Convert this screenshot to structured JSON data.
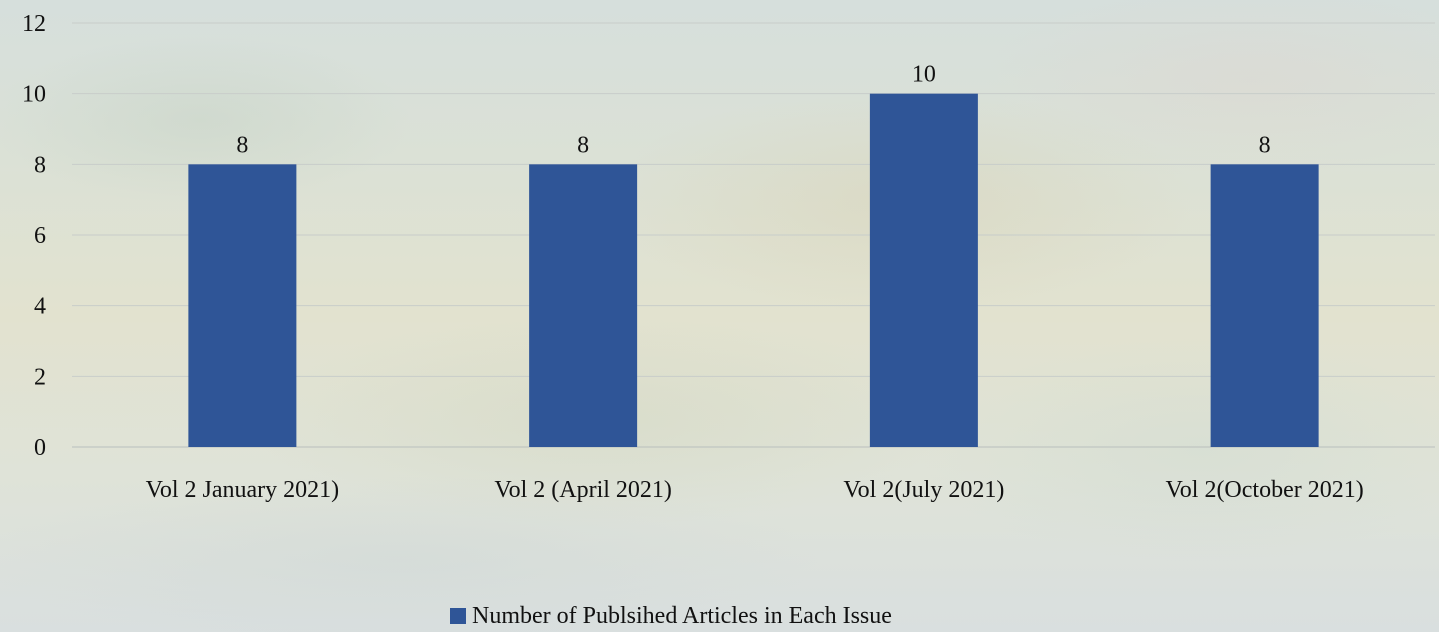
{
  "chart_data": {
    "type": "bar",
    "title": "",
    "xlabel": "",
    "ylabel": "",
    "categories": [
      "Vol 2 January 2021)",
      "Vol 2 (April 2021)",
      "Vol 2(July 2021)",
      "Vol 2(October 2021)"
    ],
    "series": [
      {
        "name": "Number of Publsihed Articles in Each Issue",
        "values": [
          8,
          8,
          10,
          8
        ],
        "color": "#2f5597"
      }
    ],
    "ylim": [
      0,
      12
    ],
    "yticks": [
      "0",
      "2",
      "4",
      "6",
      "8",
      "10",
      "12"
    ],
    "data_labels": [
      "8",
      "8",
      "10",
      "8"
    ],
    "grid": true,
    "legend_position": "bottom"
  }
}
